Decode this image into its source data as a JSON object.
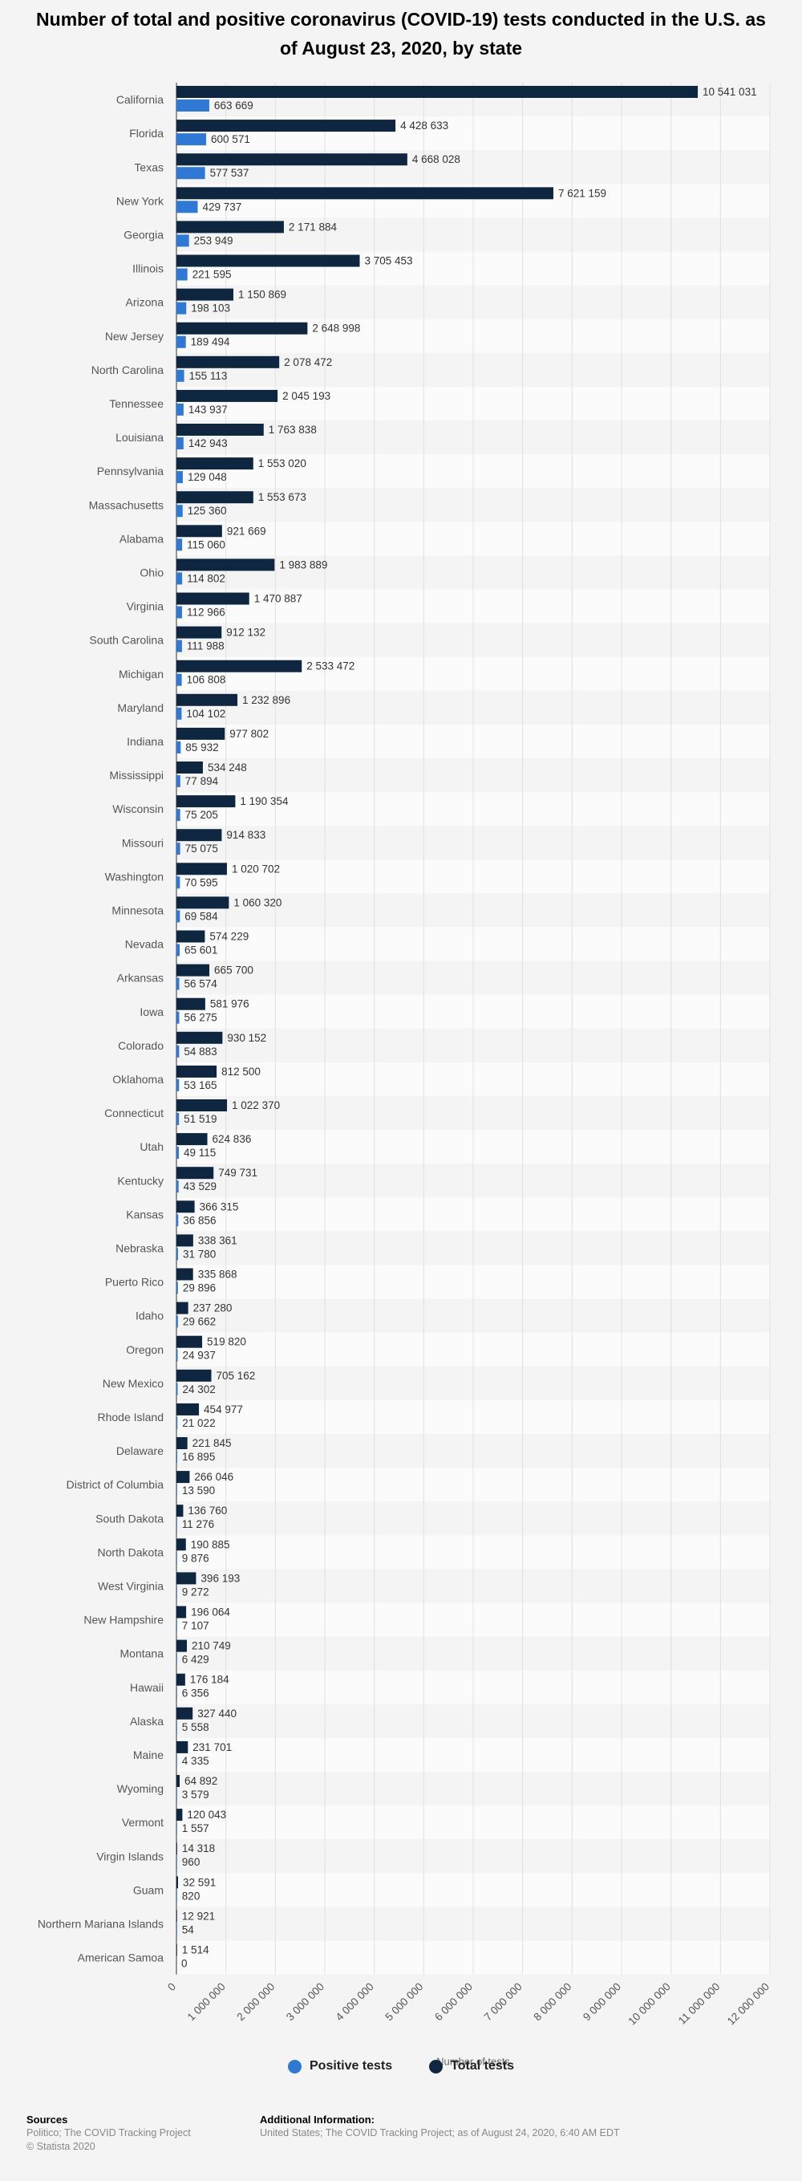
{
  "chart_data": {
    "type": "bar",
    "orientation": "horizontal",
    "title": "Number of total and positive coronavirus (COVID-19) tests conducted in the U.S. as of August 23, 2020, by state",
    "xlabel": "Number of tests",
    "ylabel": "",
    "xlim": [
      0,
      12000000
    ],
    "x_ticks": [
      "0",
      "1 000 000",
      "2 000 000",
      "3 000 000",
      "4 000 000",
      "5 000 000",
      "6 000 000",
      "7 000 000",
      "8 000 000",
      "9 000 000",
      "10 000 000",
      "11 000 000",
      "12 000 000"
    ],
    "grid": true,
    "legend_position": "bottom",
    "categories": [
      "California",
      "Florida",
      "Texas",
      "New York",
      "Georgia",
      "Illinois",
      "Arizona",
      "New Jersey",
      "North Carolina",
      "Tennessee",
      "Louisiana",
      "Pennsylvania",
      "Massachusetts",
      "Alabama",
      "Ohio",
      "Virginia",
      "South Carolina",
      "Michigan",
      "Maryland",
      "Indiana",
      "Mississippi",
      "Wisconsin",
      "Missouri",
      "Washington",
      "Minnesota",
      "Nevada",
      "Arkansas",
      "Iowa",
      "Colorado",
      "Oklahoma",
      "Connecticut",
      "Utah",
      "Kentucky",
      "Kansas",
      "Nebraska",
      "Puerto Rico",
      "Idaho",
      "Oregon",
      "New Mexico",
      "Rhode Island",
      "Delaware",
      "District of Columbia",
      "South Dakota",
      "North Dakota",
      "West Virginia",
      "New Hampshire",
      "Montana",
      "Hawaii",
      "Alaska",
      "Maine",
      "Wyoming",
      "Vermont",
      "Virgin Islands",
      "Guam",
      "Northern Mariana Islands",
      "American Samoa"
    ],
    "series": [
      {
        "name": "Total tests",
        "color": "#0f2640",
        "values": [
          10541031,
          4428633,
          4668028,
          7621159,
          2171884,
          3705453,
          1150869,
          2648998,
          2078472,
          2045193,
          1763838,
          1553020,
          1553673,
          921669,
          1983889,
          1470887,
          912132,
          2533472,
          1232896,
          977802,
          534248,
          1190354,
          914833,
          1020702,
          1060320,
          574229,
          665700,
          581976,
          930152,
          812500,
          1022370,
          624836,
          749731,
          366315,
          338361,
          335868,
          237280,
          519820,
          705162,
          454977,
          221845,
          266046,
          136760,
          190885,
          396193,
          196064,
          210749,
          176184,
          327440,
          231701,
          64892,
          120043,
          14318,
          32591,
          12921,
          1514
        ],
        "labels": [
          "10 541 031",
          "4 428 633",
          "4 668 028",
          "7 621 159",
          "2 171 884",
          "3 705 453",
          "1 150 869",
          "2 648 998",
          "2 078 472",
          "2 045 193",
          "1 763 838",
          "1 553 020",
          "1 553 673",
          "921 669",
          "1 983 889",
          "1 470 887",
          "912 132",
          "2 533 472",
          "1 232 896",
          "977 802",
          "534 248",
          "1 190 354",
          "914 833",
          "1 020 702",
          "1 060 320",
          "574 229",
          "665 700",
          "581 976",
          "930 152",
          "812 500",
          "1 022 370",
          "624 836",
          "749 731",
          "366 315",
          "338 361",
          "335 868",
          "237 280",
          "519 820",
          "705 162",
          "454 977",
          "221 845",
          "266 046",
          "136 760",
          "190 885",
          "396 193",
          "196 064",
          "210 749",
          "176 184",
          "327 440",
          "231 701",
          "64 892",
          "120 043",
          "14 318",
          "32 591",
          "12 921",
          "1 514"
        ]
      },
      {
        "name": "Positive tests",
        "color": "#2f78d6",
        "values": [
          663669,
          600571,
          577537,
          429737,
          253949,
          221595,
          198103,
          189494,
          155113,
          143937,
          142943,
          129048,
          125360,
          115060,
          114802,
          112966,
          111988,
          106808,
          104102,
          85932,
          77894,
          75205,
          75075,
          70595,
          69584,
          65601,
          56574,
          56275,
          54883,
          53165,
          51519,
          49115,
          43529,
          36856,
          31780,
          29896,
          29662,
          24937,
          24302,
          21022,
          16895,
          13590,
          11276,
          9876,
          9272,
          7107,
          6429,
          6356,
          5558,
          4335,
          3579,
          1557,
          960,
          820,
          54,
          0
        ],
        "labels": [
          "663 669",
          "600 571",
          "577 537",
          "429 737",
          "253 949",
          "221 595",
          "198 103",
          "189 494",
          "155 113",
          "143 937",
          "142 943",
          "129 048",
          "125 360",
          "115 060",
          "114 802",
          "112 966",
          "111 988",
          "106 808",
          "104 102",
          "85 932",
          "77 894",
          "75 205",
          "75 075",
          "70 595",
          "69 584",
          "65 601",
          "56 574",
          "56 275",
          "54 883",
          "53 165",
          "51 519",
          "49 115",
          "43 529",
          "36 856",
          "31 780",
          "29 896",
          "29 662",
          "24 937",
          "24 302",
          "21 022",
          "16 895",
          "13 590",
          "11 276",
          "9 876",
          "9 272",
          "7 107",
          "6 429",
          "6 356",
          "5 558",
          "4 335",
          "3 579",
          "1 557",
          "960",
          "820",
          "54",
          "0"
        ]
      }
    ]
  },
  "legend": {
    "positive_label": "Positive tests",
    "total_label": "Total tests"
  },
  "footer": {
    "sources_heading": "Sources",
    "sources_line1": "Politico; The COVID Tracking Project",
    "sources_line2": "© Statista 2020",
    "additional_heading": "Additional Information:",
    "additional_text": "United States; The COVID Tracking Project; as of August 24, 2020, 6:40 AM EDT"
  }
}
